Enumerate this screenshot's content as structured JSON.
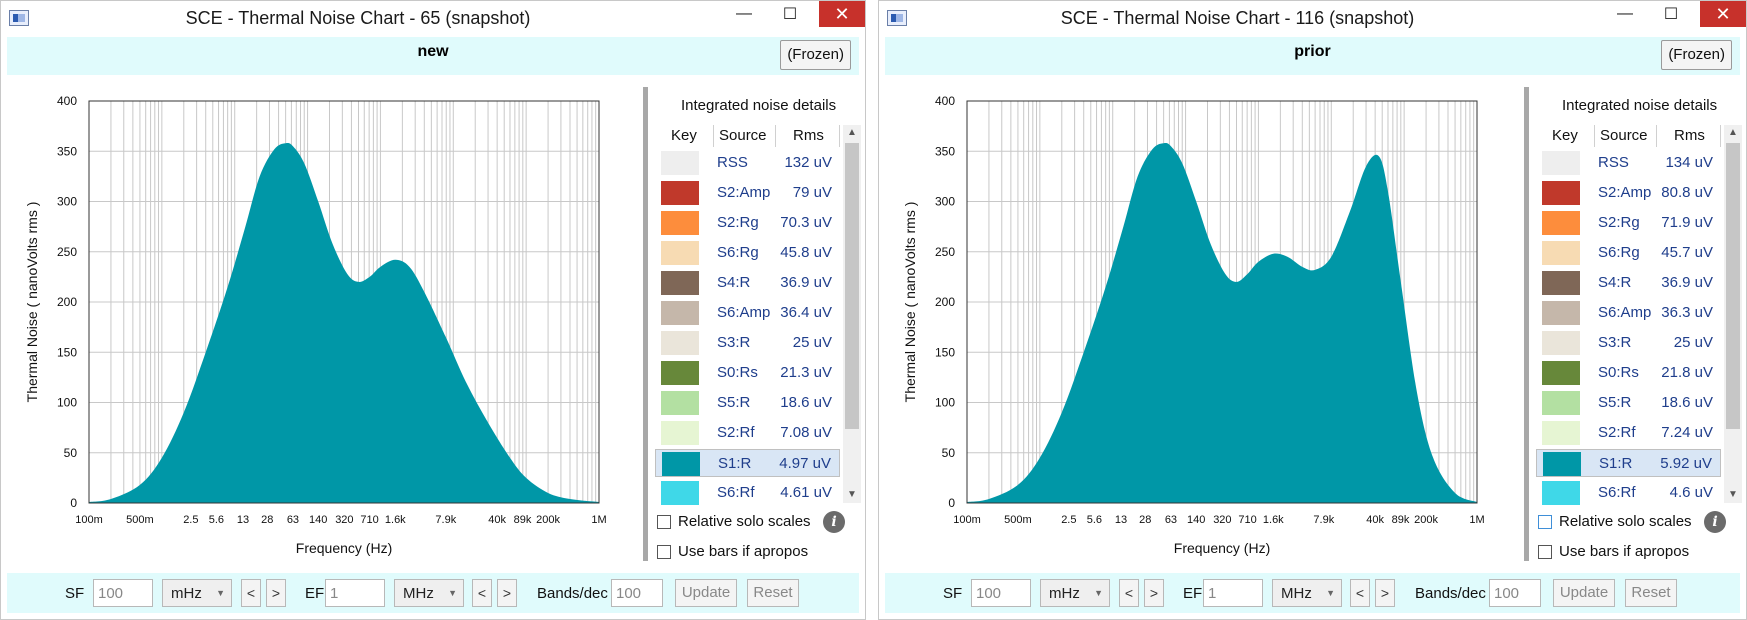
{
  "windows": [
    {
      "id": "left",
      "title": "SCE - Thermal Noise Chart - 65  (snapshot)",
      "snapshot_name": "new",
      "frozen_label": "(Frozen)",
      "details_title": "Integrated noise details",
      "columns": [
        "Key",
        "Source",
        "Rms"
      ],
      "rows": [
        {
          "source": "RSS",
          "rms": "132 uV",
          "color": "#eeeeee"
        },
        {
          "source": "S2:Amp",
          "rms": "79 uV",
          "color": "#c0392b"
        },
        {
          "source": "S2:Rg",
          "rms": "70.3 uV",
          "color": "#fd8d3c"
        },
        {
          "source": "S6:Rg",
          "rms": "45.8 uV",
          "color": "#f7dbb3"
        },
        {
          "source": "S4:R",
          "rms": "36.9 uV",
          "color": "#7f6757"
        },
        {
          "source": "S6:Amp",
          "rms": "36.4 uV",
          "color": "#c5b7aa"
        },
        {
          "source": "S3:R",
          "rms": "25 uV",
          "color": "#eae5da"
        },
        {
          "source": "S0:Rs",
          "rms": "21.3 uV",
          "color": "#67883a"
        },
        {
          "source": "S5:R",
          "rms": "18.6 uV",
          "color": "#b3e0a2"
        },
        {
          "source": "S2:Rf",
          "rms": "7.08 uV",
          "color": "#e6f5d3"
        },
        {
          "source": "S1:R",
          "rms": "4.97 uV",
          "color": "#0097a7"
        },
        {
          "source": "S6:Rf",
          "rms": "4.61 uV",
          "color": "#3fd8e8"
        }
      ],
      "selected_row": 10,
      "options": {
        "relative_solo": "Relative solo scales",
        "use_bars": "Use bars if apropos"
      },
      "footer": {
        "sf_label": "SF",
        "sf_value": "100",
        "sf_unit": "mHz",
        "ef_label": "EF",
        "ef_value": "1",
        "ef_unit": "MHz",
        "bands_label": "Bands/dec",
        "bands_value": "100",
        "update": "Update",
        "reset": "Reset",
        "prev": "<",
        "next": ">"
      }
    },
    {
      "id": "right",
      "title": "SCE - Thermal Noise Chart - 116  (snapshot)",
      "snapshot_name": "prior",
      "frozen_label": "(Frozen)",
      "details_title": "Integrated noise details",
      "columns": [
        "Key",
        "Source",
        "Rms"
      ],
      "rows": [
        {
          "source": "RSS",
          "rms": "134 uV",
          "color": "#eeeeee"
        },
        {
          "source": "S2:Amp",
          "rms": "80.8 uV",
          "color": "#c0392b"
        },
        {
          "source": "S2:Rg",
          "rms": "71.9 uV",
          "color": "#fd8d3c"
        },
        {
          "source": "S6:Rg",
          "rms": "45.7 uV",
          "color": "#f7dbb3"
        },
        {
          "source": "S4:R",
          "rms": "36.9 uV",
          "color": "#7f6757"
        },
        {
          "source": "S6:Amp",
          "rms": "36.3 uV",
          "color": "#c5b7aa"
        },
        {
          "source": "S3:R",
          "rms": "25 uV",
          "color": "#eae5da"
        },
        {
          "source": "S0:Rs",
          "rms": "21.8 uV",
          "color": "#67883a"
        },
        {
          "source": "S5:R",
          "rms": "18.6 uV",
          "color": "#b3e0a2"
        },
        {
          "source": "S2:Rf",
          "rms": "7.24 uV",
          "color": "#e6f5d3"
        },
        {
          "source": "S1:R",
          "rms": "5.92 uV",
          "color": "#0097a7"
        },
        {
          "source": "S6:Rf",
          "rms": "4.6 uV",
          "color": "#3fd8e8"
        }
      ],
      "selected_row": 10,
      "options": {
        "relative_solo": "Relative solo scales",
        "use_bars": "Use bars if apropos"
      },
      "footer": {
        "sf_label": "SF",
        "sf_value": "100",
        "sf_unit": "mHz",
        "ef_label": "EF",
        "ef_value": "1",
        "ef_unit": "MHz",
        "bands_label": "Bands/dec",
        "bands_value": "100",
        "update": "Update",
        "reset": "Reset",
        "prev": "<",
        "next": ">"
      }
    }
  ],
  "chart_data": [
    {
      "type": "area",
      "xlabel": "Frequency (Hz)",
      "ylabel": "Thermal Noise ( nanoVolts rms )",
      "x_scale": "log",
      "x_ticks": [
        "100m",
        "500m",
        "2.5",
        "5.6",
        "13",
        "28",
        "63",
        "140",
        "320",
        "710",
        "1.6k",
        "7.9k",
        "40k",
        "89k",
        "200k",
        "1M"
      ],
      "x_tick_values": [
        0.1,
        0.5,
        2.5,
        5.6,
        13,
        28,
        63,
        140,
        320,
        710,
        1600,
        7900,
        40000,
        89000,
        200000,
        1000000
      ],
      "ylim": [
        0,
        400
      ],
      "y_ticks": [
        0,
        50,
        100,
        150,
        200,
        250,
        300,
        350,
        400
      ],
      "grid": true,
      "color": "#0097a7",
      "series": [
        {
          "x": [
            0.1,
            0.2,
            0.5,
            1,
            2,
            4,
            8,
            14,
            22,
            35,
            50,
            63,
            90,
            140,
            220,
            350,
            500,
            710,
            1000,
            1600,
            2500,
            4000,
            7900,
            15000,
            30000,
            60000,
            100000,
            200000,
            400000,
            1000000
          ],
          "values": [
            1,
            4,
            18,
            45,
            90,
            150,
            215,
            275,
            325,
            352,
            358,
            355,
            338,
            300,
            258,
            228,
            220,
            225,
            235,
            242,
            235,
            210,
            165,
            120,
            80,
            45,
            25,
            10,
            4,
            1
          ]
        }
      ]
    },
    {
      "type": "area",
      "xlabel": "Frequency (Hz)",
      "ylabel": "Thermal Noise ( nanoVolts rms )",
      "x_scale": "log",
      "x_ticks": [
        "100m",
        "500m",
        "2.5",
        "5.6",
        "13",
        "28",
        "63",
        "140",
        "320",
        "710",
        "1.6k",
        "7.9k",
        "40k",
        "89k",
        "200k",
        "1M"
      ],
      "x_tick_values": [
        0.1,
        0.5,
        2.5,
        5.6,
        13,
        28,
        63,
        140,
        320,
        710,
        1600,
        7900,
        40000,
        89000,
        200000,
        1000000
      ],
      "ylim": [
        0,
        400
      ],
      "y_ticks": [
        0,
        50,
        100,
        150,
        200,
        250,
        300,
        350,
        400
      ],
      "grid": true,
      "color": "#0097a7",
      "series": [
        {
          "x": [
            0.1,
            0.2,
            0.5,
            1,
            2,
            4,
            8,
            14,
            22,
            35,
            50,
            63,
            90,
            140,
            220,
            350,
            500,
            710,
            1000,
            1600,
            2500,
            4000,
            6000,
            10000,
            18000,
            30000,
            45000,
            60000,
            90000,
            150000,
            250000,
            500000,
            1000000
          ],
          "values": [
            1,
            4,
            18,
            45,
            90,
            150,
            215,
            275,
            325,
            352,
            358,
            355,
            338,
            300,
            258,
            228,
            220,
            228,
            240,
            248,
            245,
            235,
            232,
            245,
            290,
            335,
            345,
            310,
            220,
            110,
            45,
            10,
            1
          ]
        }
      ]
    }
  ]
}
